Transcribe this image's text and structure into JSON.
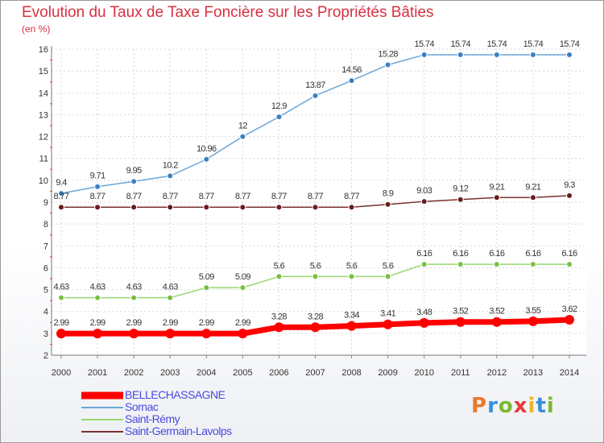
{
  "header": {
    "title": "Evolution du Taux de Taxe Foncière sur les Propriétés Bâties",
    "unit": "(en %)"
  },
  "logo": {
    "letters": [
      "P",
      "r",
      "o",
      "x",
      "i",
      "t",
      "i"
    ],
    "colors": [
      "#e87a2a",
      "#3a8fd8",
      "#7ab830",
      "#e83a3a",
      "#e8b82a",
      "#3a8fd8",
      "#7ab830"
    ]
  },
  "chart_data": {
    "type": "line",
    "title": "Evolution du Taux de Taxe Foncière sur les Propriétés Bâties",
    "ylabel": "(en %)",
    "xlabel": "",
    "ylim": [
      2,
      16
    ],
    "yticks": [
      "2",
      "3",
      "4",
      "5",
      "6",
      "7",
      "8",
      "9",
      "10",
      "11",
      "12",
      "13",
      "14",
      "15",
      "16"
    ],
    "categories": [
      "2000",
      "2001",
      "2002",
      "2003",
      "2004",
      "2005",
      "2006",
      "2007",
      "2008",
      "2009",
      "2010",
      "2011",
      "2012",
      "2013",
      "2014"
    ],
    "series": [
      {
        "name": "BELLECHASSAGNE",
        "color": "#ff0000",
        "marker": "#ff0000",
        "width": 7,
        "radius": 6,
        "values": [
          2.99,
          2.99,
          2.99,
          2.99,
          2.99,
          2.99,
          3.28,
          3.28,
          3.34,
          3.41,
          3.48,
          3.52,
          3.52,
          3.55,
          3.62
        ],
        "labels": [
          "2.99",
          "2.99",
          "2.99",
          "2.99",
          "2.99",
          "2.99",
          "3.28",
          "3.28",
          "3.34",
          "3.41",
          "3.48",
          "3.52",
          "3.52",
          "3.55",
          "3.62"
        ]
      },
      {
        "name": "Sornac",
        "color": "#6aa6d8",
        "marker": "#3a80c0",
        "width": 1.5,
        "radius": 3.5,
        "values": [
          9.4,
          9.71,
          9.95,
          10.2,
          10.96,
          12,
          12.9,
          13.87,
          14.56,
          15.28,
          15.74,
          15.74,
          15.74,
          15.74,
          15.74
        ],
        "labels": [
          "9.4",
          "9.71",
          "9.95",
          "10.2",
          "10.96",
          "12",
          "12.9",
          "13.87",
          "14.56",
          "15.28",
          "15.74",
          "15.74",
          "15.74",
          "15.74",
          "15.74"
        ]
      },
      {
        "name": "Saint-Rémy",
        "color": "#98d870",
        "marker": "#78c040",
        "width": 1.5,
        "radius": 3.5,
        "values": [
          4.63,
          4.63,
          4.63,
          4.63,
          5.09,
          5.09,
          5.6,
          5.6,
          5.6,
          5.6,
          6.16,
          6.16,
          6.16,
          6.16,
          6.16
        ],
        "labels": [
          "4.63",
          "4.63",
          "4.63",
          "4.63",
          "5.09",
          "5.09",
          "5.6",
          "5.6",
          "5.6",
          "5.6",
          "6.16",
          "6.16",
          "6.16",
          "6.16",
          "6.16"
        ]
      },
      {
        "name": "Saint-Germain-Lavolps",
        "color": "#7a3030",
        "marker": "#6a1c1c",
        "width": 1.5,
        "radius": 3.5,
        "values": [
          8.77,
          8.77,
          8.77,
          8.77,
          8.77,
          8.77,
          8.77,
          8.77,
          8.77,
          8.9,
          9.03,
          9.12,
          9.21,
          9.21,
          9.3
        ],
        "labels": [
          "8.77",
          "8.77",
          "8.77",
          "8.77",
          "8.77",
          "8.77",
          "8.77",
          "8.77",
          "8.77",
          "8.9",
          "9.03",
          "9.12",
          "9.21",
          "9.21",
          "9.3"
        ]
      }
    ],
    "legend": [
      "BELLECHASSAGNE",
      "Sornac",
      "Saint-Rémy",
      "Saint-Germain-Lavolps"
    ],
    "legend_position": "bottom-left",
    "grid": true
  }
}
